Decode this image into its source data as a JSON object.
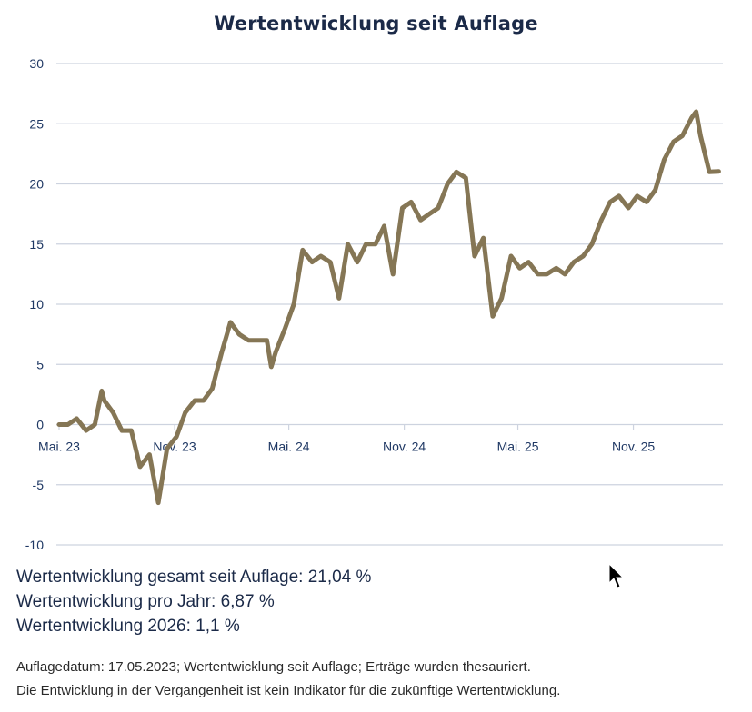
{
  "chart_data": {
    "type": "line",
    "title": "Wertentwicklung seit Auflage",
    "xlabel": "",
    "ylabel": "",
    "ylim": [
      -10,
      30
    ],
    "yticks": [
      30,
      25,
      20,
      15,
      10,
      5,
      0,
      -5,
      -10
    ],
    "xlim": [
      "2023-05-17",
      "2026-04-02"
    ],
    "xticks": [
      {
        "date": "2023-05-17",
        "label": "Mai. 23"
      },
      {
        "date": "2023-11-17",
        "label": "Nov. 23"
      },
      {
        "date": "2024-05-17",
        "label": "Mai. 24"
      },
      {
        "date": "2024-11-17",
        "label": "Nov. 24"
      },
      {
        "date": "2025-05-17",
        "label": "Mai. 25"
      },
      {
        "date": "2025-11-17",
        "label": "Nov. 25"
      }
    ],
    "grid": true,
    "line_color": "#857655",
    "series": [
      {
        "x": [
          "2023-05-17",
          "2023-05-31",
          "2023-06-14",
          "2023-06-29",
          "2023-07-13",
          "2023-07-24",
          "2023-07-28",
          "2023-08-11",
          "2023-08-25",
          "2023-09-09",
          "2023-09-23",
          "2023-10-08",
          "2023-10-22",
          "2023-11-05",
          "2023-11-20",
          "2023-12-04",
          "2023-12-19",
          "2024-01-02",
          "2024-01-16",
          "2024-01-31",
          "2024-02-14",
          "2024-02-28",
          "2024-03-14",
          "2024-03-28",
          "2024-04-12",
          "2024-04-19",
          "2024-04-26",
          "2024-05-11",
          "2024-05-25",
          "2024-06-08",
          "2024-06-23",
          "2024-07-07",
          "2024-07-22",
          "2024-08-05",
          "2024-08-19",
          "2024-09-03",
          "2024-09-17",
          "2024-10-02",
          "2024-10-16",
          "2024-10-30",
          "2024-11-14",
          "2024-11-28",
          "2024-12-13",
          "2024-12-27",
          "2025-01-10",
          "2025-01-25",
          "2025-02-08",
          "2025-02-23",
          "2025-03-09",
          "2025-03-23",
          "2025-04-07",
          "2025-04-21",
          "2025-05-06",
          "2025-05-20",
          "2025-06-03",
          "2025-06-18",
          "2025-07-02",
          "2025-07-17",
          "2025-07-31",
          "2025-08-14",
          "2025-08-29",
          "2025-09-12",
          "2025-09-27",
          "2025-10-11",
          "2025-10-25",
          "2025-11-09",
          "2025-11-23",
          "2025-12-08",
          "2025-12-22",
          "2026-01-05",
          "2026-01-20",
          "2026-02-03",
          "2026-02-18",
          "2026-02-25",
          "2026-03-04",
          "2026-03-18",
          "2026-04-02"
        ],
        "y": [
          0,
          0,
          0.5,
          -0.5,
          0,
          2.8,
          2,
          1,
          -0.5,
          -0.5,
          -3.5,
          -2.5,
          -6.5,
          -2,
          -1,
          1,
          2,
          2,
          3,
          6,
          8.5,
          7.5,
          7,
          7,
          7,
          4.8,
          6,
          8,
          10,
          14.5,
          13.5,
          14,
          13.5,
          10.5,
          15,
          13.5,
          15,
          15,
          16.5,
          12.5,
          18,
          18.5,
          17,
          17.5,
          18,
          20,
          21,
          20.5,
          14,
          15.5,
          9,
          10.5,
          14,
          13,
          13.5,
          12.5,
          12.5,
          13,
          12.5,
          13.5,
          14,
          15,
          17,
          18.5,
          19,
          18,
          19,
          18.5,
          19.5,
          22,
          23.5,
          24,
          25.5,
          26,
          24,
          21,
          21.04
        ]
      }
    ]
  },
  "stats": [
    "Wertentwicklung gesamt seit Auflage: 21,04 %",
    "Wertentwicklung pro Jahr: 6,87 %",
    "Wertentwicklung 2026: 1,1 %"
  ],
  "notes": [
    "Auflagedatum: 17.05.2023; Wertentwicklung seit Auflage; Erträge wurden thesauriert.",
    "Die Entwicklung in der Vergangenheit ist kein Indikator für die zukünftige Wertentwicklung."
  ],
  "colors": {
    "title": "#1b2a48",
    "axis_text": "#1f3864",
    "grid": "#cdd3df",
    "line": "#857655"
  },
  "icons": {
    "cursor": "mouse-pointer-icon"
  }
}
